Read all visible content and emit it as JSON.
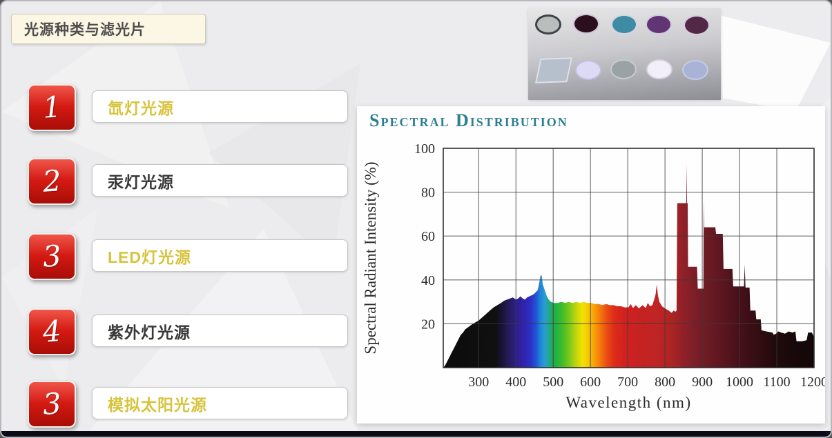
{
  "slide": {
    "title": "光源种类与滤光片",
    "items": [
      {
        "number": "1",
        "label": "氙灯光源",
        "highlight": true
      },
      {
        "number": "2",
        "label": "汞灯光源",
        "highlight": false
      },
      {
        "number": "3",
        "label": "LED灯光源",
        "highlight": true
      },
      {
        "number": "4",
        "label": "紫外灯光源",
        "highlight": false
      },
      {
        "number": "3",
        "label": "模拟太阳光源",
        "highlight": true
      }
    ],
    "colors": {
      "badge_red_top": "#f0564a",
      "badge_red_bottom": "#a80d07",
      "highlight_text": "#d7c33c",
      "normal_text": "#383838",
      "chart_title_teal": "#2e7e92",
      "footer_bar": "#0b0b15",
      "slide_background": "#ececee",
      "title_box_background": "#fcf7e4"
    }
  },
  "filters_photo": {
    "row1": [
      {
        "shape": "circle",
        "fill": "#b9bdbc",
        "rim": "#3e4348",
        "name": "gray-nd-filter"
      },
      {
        "shape": "circle",
        "fill": "#2c0f1e",
        "rim": "#cfc3dc",
        "name": "dark-maroon-filter"
      },
      {
        "shape": "circle",
        "fill": "#3e8ca3",
        "rim": "#d8d4e4",
        "name": "teal-filter"
      },
      {
        "shape": "circle",
        "fill": "#613473",
        "rim": "#d4c8e0",
        "name": "purple-filter"
      },
      {
        "shape": "circle",
        "fill": "#512846",
        "rim": "#d8cde0",
        "name": "plum-filter"
      }
    ],
    "row2": [
      {
        "shape": "square",
        "fill": "#b6bfcc",
        "rim": "#dde2ea",
        "name": "square-glass-filter"
      },
      {
        "shape": "circle",
        "fill": "#dcdaf4",
        "rim": "#c0bedd",
        "name": "pale-lavender-filter"
      },
      {
        "shape": "circle",
        "fill": "#9aa2a6",
        "rim": "#c8ccd0",
        "name": "gray-filter"
      },
      {
        "shape": "circle",
        "fill": "#f3eff9",
        "rim": "#d8d0e0",
        "name": "white-filter"
      },
      {
        "shape": "circle",
        "fill": "#a9b3d6",
        "rim": "#c4cce4",
        "name": "periwinkle-filter"
      }
    ]
  },
  "chart_data": {
    "type": "area",
    "title": "Spectral Distribution",
    "xlabel": "Wavelength (nm)",
    "ylabel": "Spectral Radiant Intensity (%)",
    "xlim": [
      205,
      1200
    ],
    "ylim": [
      0,
      100
    ],
    "xticks": [
      300,
      400,
      500,
      600,
      700,
      800,
      900,
      1000,
      1100,
      1200
    ],
    "yticks": [
      20,
      40,
      60,
      80,
      100
    ],
    "grid": true,
    "legend": false,
    "points": [
      [
        205,
        0
      ],
      [
        210,
        1
      ],
      [
        216,
        3
      ],
      [
        222,
        5
      ],
      [
        228,
        7
      ],
      [
        234,
        9
      ],
      [
        240,
        11
      ],
      [
        246,
        13
      ],
      [
        252,
        15
      ],
      [
        258,
        16
      ],
      [
        264,
        17.5
      ],
      [
        272,
        18.5
      ],
      [
        280,
        19.5
      ],
      [
        290,
        20.5
      ],
      [
        300,
        21.5
      ],
      [
        310,
        23
      ],
      [
        320,
        24.5
      ],
      [
        330,
        26
      ],
      [
        340,
        27.5
      ],
      [
        350,
        28.5
      ],
      [
        360,
        29.5
      ],
      [
        368,
        30.5
      ],
      [
        376,
        31
      ],
      [
        384,
        31.5
      ],
      [
        392,
        32
      ],
      [
        400,
        31
      ],
      [
        406,
        31.5
      ],
      [
        412,
        32.5
      ],
      [
        418,
        31.5
      ],
      [
        424,
        31
      ],
      [
        430,
        32
      ],
      [
        436,
        32.5
      ],
      [
        442,
        33
      ],
      [
        448,
        33.5
      ],
      [
        454,
        34.5
      ],
      [
        459,
        35.5
      ],
      [
        463,
        39
      ],
      [
        466,
        42
      ],
      [
        469,
        42
      ],
      [
        472,
        38
      ],
      [
        475,
        36.5
      ],
      [
        479,
        34.5
      ],
      [
        483,
        32.5
      ],
      [
        488,
        31
      ],
      [
        494,
        30
      ],
      [
        502,
        29.5
      ],
      [
        512,
        29.5
      ],
      [
        522,
        30
      ],
      [
        532,
        29.5
      ],
      [
        542,
        30
      ],
      [
        552,
        29.5
      ],
      [
        562,
        30
      ],
      [
        572,
        29.5
      ],
      [
        582,
        30
      ],
      [
        592,
        29.5
      ],
      [
        602,
        29.5
      ],
      [
        612,
        29
      ],
      [
        622,
        29
      ],
      [
        632,
        28.5
      ],
      [
        642,
        29
      ],
      [
        652,
        28.5
      ],
      [
        662,
        28.5
      ],
      [
        672,
        28
      ],
      [
        682,
        28
      ],
      [
        692,
        27.5
      ],
      [
        702,
        27.5
      ],
      [
        708,
        29
      ],
      [
        714,
        27.2
      ],
      [
        722,
        28.5
      ],
      [
        730,
        27
      ],
      [
        740,
        28.5
      ],
      [
        748,
        27.2
      ],
      [
        754,
        29.5
      ],
      [
        760,
        28
      ],
      [
        766,
        28.5
      ],
      [
        771,
        31
      ],
      [
        775,
        33.5
      ],
      [
        778,
        38
      ],
      [
        781,
        33
      ],
      [
        785,
        30
      ],
      [
        792,
        28
      ],
      [
        800,
        27
      ],
      [
        810,
        26
      ],
      [
        818,
        25
      ],
      [
        823,
        26
      ],
      [
        828,
        25.5
      ],
      [
        831,
        26
      ],
      [
        833,
        75
      ],
      [
        856,
        75
      ],
      [
        857,
        75
      ],
      [
        858,
        93
      ],
      [
        859,
        75
      ],
      [
        861,
        75
      ],
      [
        862,
        46
      ],
      [
        886,
        46
      ],
      [
        888,
        36
      ],
      [
        902,
        36
      ],
      [
        903,
        36
      ],
      [
        904,
        76
      ],
      [
        905,
        64
      ],
      [
        935,
        64
      ],
      [
        937,
        61
      ],
      [
        955,
        61
      ],
      [
        957,
        45
      ],
      [
        981,
        45
      ],
      [
        983,
        37
      ],
      [
        1012,
        37
      ],
      [
        1014,
        47
      ],
      [
        1016,
        36.5
      ],
      [
        1027,
        36.5
      ],
      [
        1029,
        26
      ],
      [
        1043,
        26
      ],
      [
        1045,
        22
      ],
      [
        1057,
        22
      ],
      [
        1059,
        17
      ],
      [
        1072,
        16.5
      ],
      [
        1088,
        16
      ],
      [
        1092,
        15
      ],
      [
        1098,
        15.5
      ],
      [
        1104,
        16.5
      ],
      [
        1112,
        16
      ],
      [
        1122,
        15.5
      ],
      [
        1132,
        16.5
      ],
      [
        1142,
        16
      ],
      [
        1150,
        16.5
      ],
      [
        1153,
        12
      ],
      [
        1168,
        12
      ],
      [
        1180,
        12.5
      ],
      [
        1184,
        16
      ],
      [
        1194,
        16
      ],
      [
        1200,
        14
      ],
      [
        1200,
        0
      ]
    ],
    "spectrum_gradient": [
      [
        0,
        "#0b0b0b"
      ],
      [
        0.14,
        "#101010"
      ],
      [
        0.155,
        "#171230"
      ],
      [
        0.175,
        "#241b58"
      ],
      [
        0.195,
        "#2c1f86"
      ],
      [
        0.215,
        "#3022aa"
      ],
      [
        0.235,
        "#2c2fc6"
      ],
      [
        0.25,
        "#2153d4"
      ],
      [
        0.262,
        "#1f86da"
      ],
      [
        0.275,
        "#28a0ce"
      ],
      [
        0.287,
        "#23a87e"
      ],
      [
        0.3,
        "#1fae48"
      ],
      [
        0.32,
        "#3cbc2c"
      ],
      [
        0.34,
        "#7cc81c"
      ],
      [
        0.36,
        "#c6d60c"
      ],
      [
        0.376,
        "#f2e202"
      ],
      [
        0.392,
        "#f6c404"
      ],
      [
        0.408,
        "#f79f07"
      ],
      [
        0.424,
        "#f4770d"
      ],
      [
        0.443,
        "#e94814"
      ],
      [
        0.462,
        "#dc2b18"
      ],
      [
        0.49,
        "#d02020"
      ],
      [
        0.53,
        "#c62222"
      ],
      [
        0.58,
        "#bf2424"
      ],
      [
        0.62,
        "#a82424"
      ],
      [
        0.65,
        "#8e2028"
      ],
      [
        0.68,
        "#7a1e28"
      ],
      [
        0.72,
        "#691a23"
      ],
      [
        0.76,
        "#58151e"
      ],
      [
        0.8,
        "#461019"
      ],
      [
        0.85,
        "#320d12"
      ],
      [
        0.9,
        "#1f0a0b"
      ],
      [
        1,
        "#120707"
      ]
    ]
  }
}
